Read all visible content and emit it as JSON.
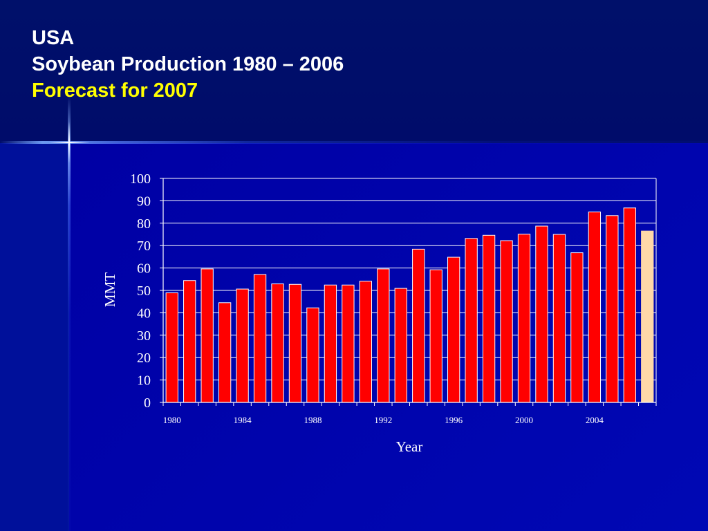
{
  "slide": {
    "title_line1": "USA",
    "title_line2": "Soybean Production 1980 – 2006",
    "title_line3": "Forecast for 2007",
    "colors": {
      "background": "#0000a8",
      "title_main": "#ffffff",
      "title_forecast": "#ffff00"
    }
  },
  "chart_data": {
    "type": "bar",
    "x": [
      1980,
      1981,
      1982,
      1983,
      1984,
      1985,
      1986,
      1987,
      1988,
      1989,
      1990,
      1991,
      1992,
      1993,
      1994,
      1995,
      1996,
      1997,
      1998,
      1999,
      2000,
      2001,
      2002,
      2003,
      2004,
      2005,
      2006,
      2007
    ],
    "values": [
      48.9,
      54.4,
      59.6,
      44.5,
      50.6,
      57.1,
      52.9,
      52.7,
      42.2,
      52.4,
      52.4,
      54.1,
      59.6,
      50.9,
      68.4,
      59.2,
      64.8,
      73.2,
      74.6,
      72.2,
      75.1,
      78.7,
      75.0,
      66.8,
      85.0,
      83.4,
      86.8,
      76.5
    ],
    "forecast_index": 27,
    "xlabel": "Year",
    "ylabel": "MMT",
    "ylim": [
      0,
      100
    ],
    "yticks": [
      0,
      10,
      20,
      30,
      40,
      50,
      60,
      70,
      80,
      90,
      100
    ],
    "xtick_labels": [
      "1980",
      "1984",
      "1988",
      "1992",
      "1996",
      "2000",
      "2004"
    ],
    "grid": true,
    "colors": {
      "bars": "#ff0000",
      "forecast_bar": "#ffd8a8",
      "bar_edge": "#ffffff",
      "gridline": "#ffffff"
    }
  }
}
